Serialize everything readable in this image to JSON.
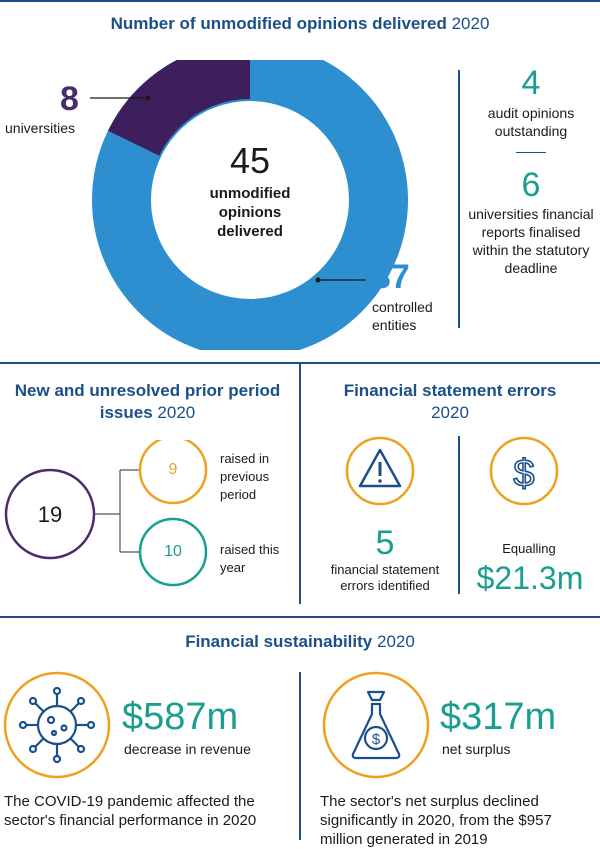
{
  "colors": {
    "navy": "#1b4f8a",
    "teal": "#1a9e8f",
    "orange": "#f0a020",
    "purple": "#4b2c6b",
    "donut_blue": "#2e8fd0",
    "donut_purple": "#3e1f5e"
  },
  "section1": {
    "title": "Number of unmodified opinions delivered",
    "year": "2020",
    "donut": {
      "total": "45",
      "center_label": "unmodified opinions delivered",
      "universities_value": "8",
      "universities_label": "universities",
      "controlled_value": "37",
      "controlled_label": "controlled entities",
      "universities_share": 8,
      "controlled_share": 37
    },
    "stat1": {
      "value": "4",
      "label": "audit opinions outstanding"
    },
    "stat2": {
      "value": "6",
      "label": "universities financial reports finalised within the statutory deadline"
    }
  },
  "section2": {
    "title": "New and unresolved prior period issues",
    "year": "2020",
    "total": "19",
    "previous": {
      "value": "9",
      "label": "raised in previous period"
    },
    "this_year": {
      "value": "10",
      "label": "raised this year"
    }
  },
  "section3": {
    "title": "Financial statement errors",
    "year": "2020",
    "errors": {
      "value": "5",
      "label": "financial statement errors identified",
      "icon": "warning-icon"
    },
    "amount": {
      "intro": "Equalling",
      "value": "$21.3m",
      "icon": "dollar-icon"
    }
  },
  "section4": {
    "title": "Financial sustainability",
    "year": "2020",
    "revenue": {
      "value": "$587m",
      "label": "decrease in revenue",
      "icon": "virus-icon",
      "note": "The COVID-19 pandemic affected the sector's financial performance in 2020"
    },
    "surplus": {
      "value": "$317m",
      "label": "net surplus",
      "icon": "money-bag-icon",
      "note": "The sector's net surplus declined significantly in 2020, from the $957 million generated in 2019"
    }
  }
}
